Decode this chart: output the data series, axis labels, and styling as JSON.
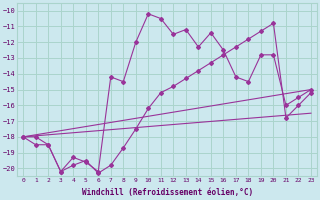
{
  "xlabel": "Windchill (Refroidissement éolien,°C)",
  "bg_color": "#cce8ee",
  "grid_color": "#aad4cc",
  "line_color": "#993399",
  "xlim": [
    -0.5,
    23.5
  ],
  "ylim": [
    -20.5,
    -9.5
  ],
  "yticks": [
    -20,
    -19,
    -18,
    -17,
    -16,
    -15,
    -14,
    -13,
    -12,
    -11,
    -10
  ],
  "xticks": [
    0,
    1,
    2,
    3,
    4,
    5,
    6,
    7,
    8,
    9,
    10,
    11,
    12,
    13,
    14,
    15,
    16,
    17,
    18,
    19,
    20,
    21,
    22,
    23
  ],
  "series": [
    {
      "x": [
        0,
        1,
        2,
        3,
        4,
        5,
        6,
        7,
        8,
        9,
        10,
        11,
        12,
        13,
        14,
        15,
        16,
        17,
        18,
        19,
        20,
        21,
        22,
        23
      ],
      "y": [
        -18,
        -18,
        -18.5,
        -20.2,
        -19.3,
        -19.6,
        -20.2,
        -14.2,
        -14.5,
        -12.0,
        -10.2,
        -10.5,
        -11.5,
        -11.2,
        -12.3,
        -11.4,
        -12.5,
        -14.2,
        -14.5,
        -12.8,
        -12.8,
        -16.0,
        -15.5,
        -15.0
      ],
      "markers": true
    },
    {
      "x": [
        0,
        1,
        2,
        3,
        4,
        5,
        6,
        7,
        8,
        9,
        10,
        11,
        12,
        13,
        14,
        15,
        16,
        17,
        18,
        19,
        20,
        21,
        22,
        23
      ],
      "y": [
        -18,
        -18.5,
        -18.5,
        -20.2,
        -19.8,
        -19.5,
        -20.3,
        -19.8,
        -18.7,
        -17.5,
        -16.2,
        -15.2,
        -14.8,
        -14.3,
        -13.8,
        -13.3,
        -12.8,
        -12.3,
        -11.8,
        -11.3,
        -10.8,
        -16.8,
        -16.0,
        -15.2
      ],
      "markers": true
    },
    {
      "x": [
        0,
        23
      ],
      "y": [
        -18,
        -15.0
      ],
      "markers": false
    },
    {
      "x": [
        0,
        23
      ],
      "y": [
        -18,
        -16.5
      ],
      "markers": false
    }
  ]
}
